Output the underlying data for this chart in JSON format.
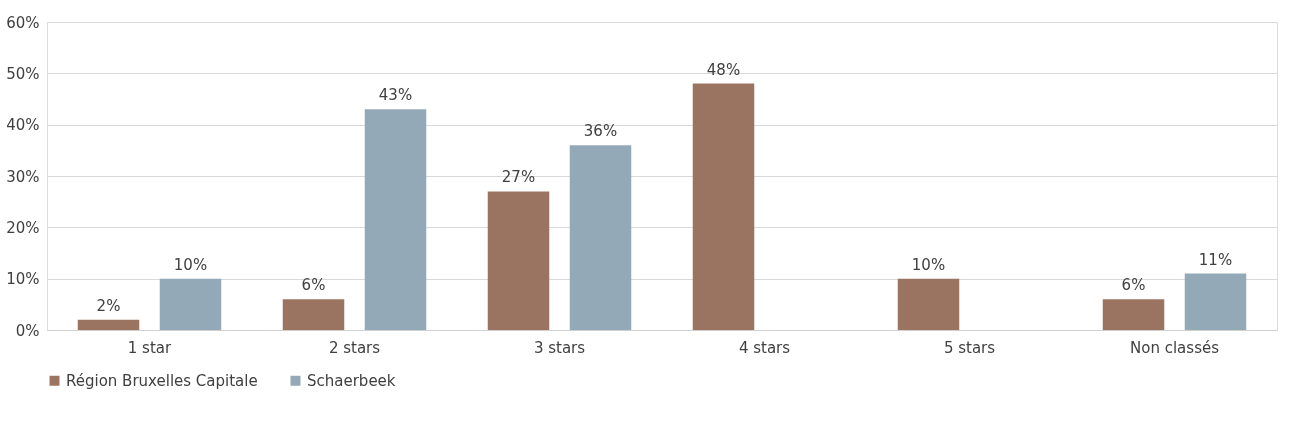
{
  "chart_data": {
    "type": "bar",
    "categories": [
      "1 star",
      "2 stars",
      "3 stars",
      "4 stars",
      "5 stars",
      "Non classés"
    ],
    "series": [
      {
        "name": "Région Bruxelles Capitale",
        "color": "#9b7461",
        "values": [
          2,
          6,
          27,
          48,
          10,
          6
        ],
        "value_labels": [
          "2%",
          "6%",
          "27%",
          "48%",
          "10%",
          "6%"
        ]
      },
      {
        "name": "Schaerbeek",
        "color": "#94a9b8",
        "values": [
          10,
          43,
          36,
          null,
          null,
          11
        ],
        "value_labels": [
          "10%",
          "43%",
          "36%",
          null,
          null,
          "11%"
        ]
      }
    ],
    "ylim": [
      0,
      60
    ],
    "yticks": [
      {
        "value": 0,
        "label": "0%"
      },
      {
        "value": 10,
        "label": "10%"
      },
      {
        "value": 20,
        "label": "20%"
      },
      {
        "value": 30,
        "label": "30%"
      },
      {
        "value": 40,
        "label": "40%"
      },
      {
        "value": 50,
        "label": "50%"
      },
      {
        "value": 60,
        "label": "60%"
      }
    ],
    "grid": "y",
    "legend": "bottom"
  }
}
